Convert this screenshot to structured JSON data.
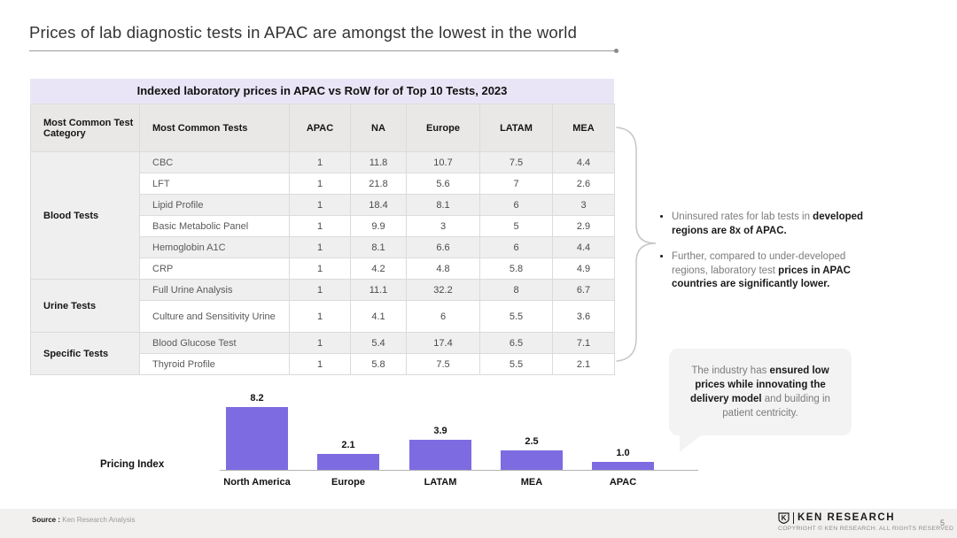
{
  "slide": {
    "title": "Prices of lab diagnostic tests in APAC are amongst the lowest in the world",
    "page_number": "5"
  },
  "table": {
    "title": "Indexed laboratory prices in APAC vs RoW for of Top 10 Tests, 2023",
    "columns": [
      "Most Common Test Category",
      "Most Common Tests",
      "APAC",
      "NA",
      "Europe",
      "LATAM",
      "MEA"
    ],
    "groups": [
      {
        "category": "Blood Tests",
        "rows": [
          {
            "test": "CBC",
            "values": [
              "1",
              "11.8",
              "10.7",
              "7.5",
              "4.4"
            ]
          },
          {
            "test": "LFT",
            "values": [
              "1",
              "21.8",
              "5.6",
              "7",
              "2.6"
            ]
          },
          {
            "test": "Lipid Profile",
            "values": [
              "1",
              "18.4",
              "8.1",
              "6",
              "3"
            ]
          },
          {
            "test": "Basic Metabolic Panel",
            "values": [
              "1",
              "9.9",
              "3",
              "5",
              "2.9"
            ]
          },
          {
            "test": "Hemoglobin A1C",
            "values": [
              "1",
              "8.1",
              "6.6",
              "6",
              "4.4"
            ]
          },
          {
            "test": "CRP",
            "values": [
              "1",
              "4.2",
              "4.8",
              "5.8",
              "4.9"
            ]
          }
        ]
      },
      {
        "category": "Urine Tests",
        "rows": [
          {
            "test": "Full Urine Analysis",
            "values": [
              "1",
              "11.1",
              "32.2",
              "8",
              "6.7"
            ]
          },
          {
            "test": "Culture and Sensitivity Urine",
            "values": [
              "1",
              "4.1",
              "6",
              "5.5",
              "3.6"
            ]
          }
        ]
      },
      {
        "category": "Specific Tests",
        "rows": [
          {
            "test": "Blood Glucose Test",
            "values": [
              "1",
              "5.4",
              "17.4",
              "6.5",
              "7.1"
            ]
          },
          {
            "test": "Thyroid Profile",
            "values": [
              "1",
              "5.8",
              "7.5",
              "5.5",
              "2.1"
            ]
          }
        ]
      }
    ]
  },
  "insights": {
    "bullets": [
      [
        {
          "text": "Uninsured rates for lab tests in ",
          "bold": false
        },
        {
          "text": "developed regions are 8x of APAC.",
          "bold": true
        }
      ],
      [
        {
          "text": "Further, compared to under-developed regions, laboratory test ",
          "bold": false
        },
        {
          "text": "prices in APAC countries are significantly lower.",
          "bold": true
        }
      ]
    ]
  },
  "callout": {
    "segments": [
      {
        "text": "The industry has ",
        "bold": false
      },
      {
        "text": "ensured low prices while innovating the delivery model",
        "bold": true
      },
      {
        "text": " and building in patient centricity.",
        "bold": false
      }
    ]
  },
  "chart_data": {
    "type": "bar",
    "title": "",
    "categories": [
      "North America",
      "Europe",
      "LATAM",
      "MEA",
      "APAC"
    ],
    "values": [
      8.2,
      2.1,
      3.9,
      2.5,
      1.0
    ],
    "value_labels": [
      "8.2",
      "2.1",
      "3.9",
      "2.5",
      "1.0"
    ],
    "xlabel": "",
    "ylabel": "Pricing Index",
    "ylim": [
      0,
      8.2
    ],
    "grid": false,
    "legend": false,
    "bar_color": "#7D6BE2"
  },
  "footer": {
    "source_label": "Source :",
    "source_text": "Ken Research Analysis",
    "logo_letter": "K",
    "brand": "KEN RESEARCH",
    "copyright": "COPYRIGHT © KEN RESEARCH. ALL RIGHTS RESERVED",
    "page": "5"
  },
  "colors": {
    "accent_purple": "#7D6BE2",
    "table_title_bg": "#E9E5F6",
    "header_row_bg": "#E9E8E6",
    "row_stripe_gray": "#EFEFEF",
    "footer_bg": "#F1F0EE"
  }
}
